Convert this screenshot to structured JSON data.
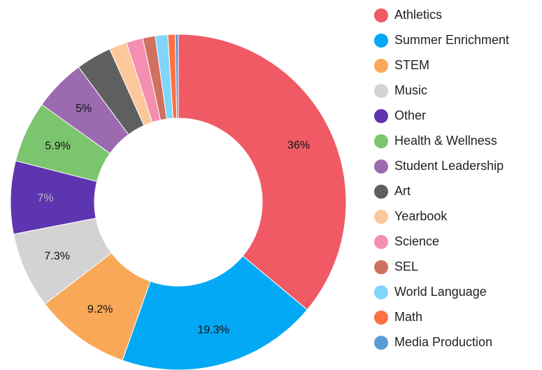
{
  "chart_data": {
    "type": "donut",
    "categories": [
      "Athletics",
      "Summer Enrichment",
      "STEM",
      "Music",
      "Other",
      "Health & Wellness",
      "Student Leadership",
      "Art",
      "Yearbook",
      "Science",
      "SEL",
      "World Language",
      "Math",
      "Media Production"
    ],
    "values": [
      36,
      19.3,
      9.2,
      7.3,
      7,
      5.9,
      5,
      3.4,
      1.7,
      1.6,
      1.2,
      1.2,
      0.7,
      0.3
    ],
    "value_labels": [
      "36%",
      "19.3%",
      "9.2%",
      "7.3%",
      "7%",
      "5.9%",
      "5%",
      null,
      null,
      null,
      null,
      null,
      null,
      null
    ],
    "colors": [
      "#f05a64",
      "#03a9f4",
      "#f9a857",
      "#d3d3d3",
      "#5e35b1",
      "#7cc56f",
      "#9c6ab0",
      "#5f5f5f",
      "#fcc89b",
      "#f48fb1",
      "#d07060",
      "#81d4fa",
      "#ff7043",
      "#5b9bd5"
    ],
    "legend": "right"
  }
}
